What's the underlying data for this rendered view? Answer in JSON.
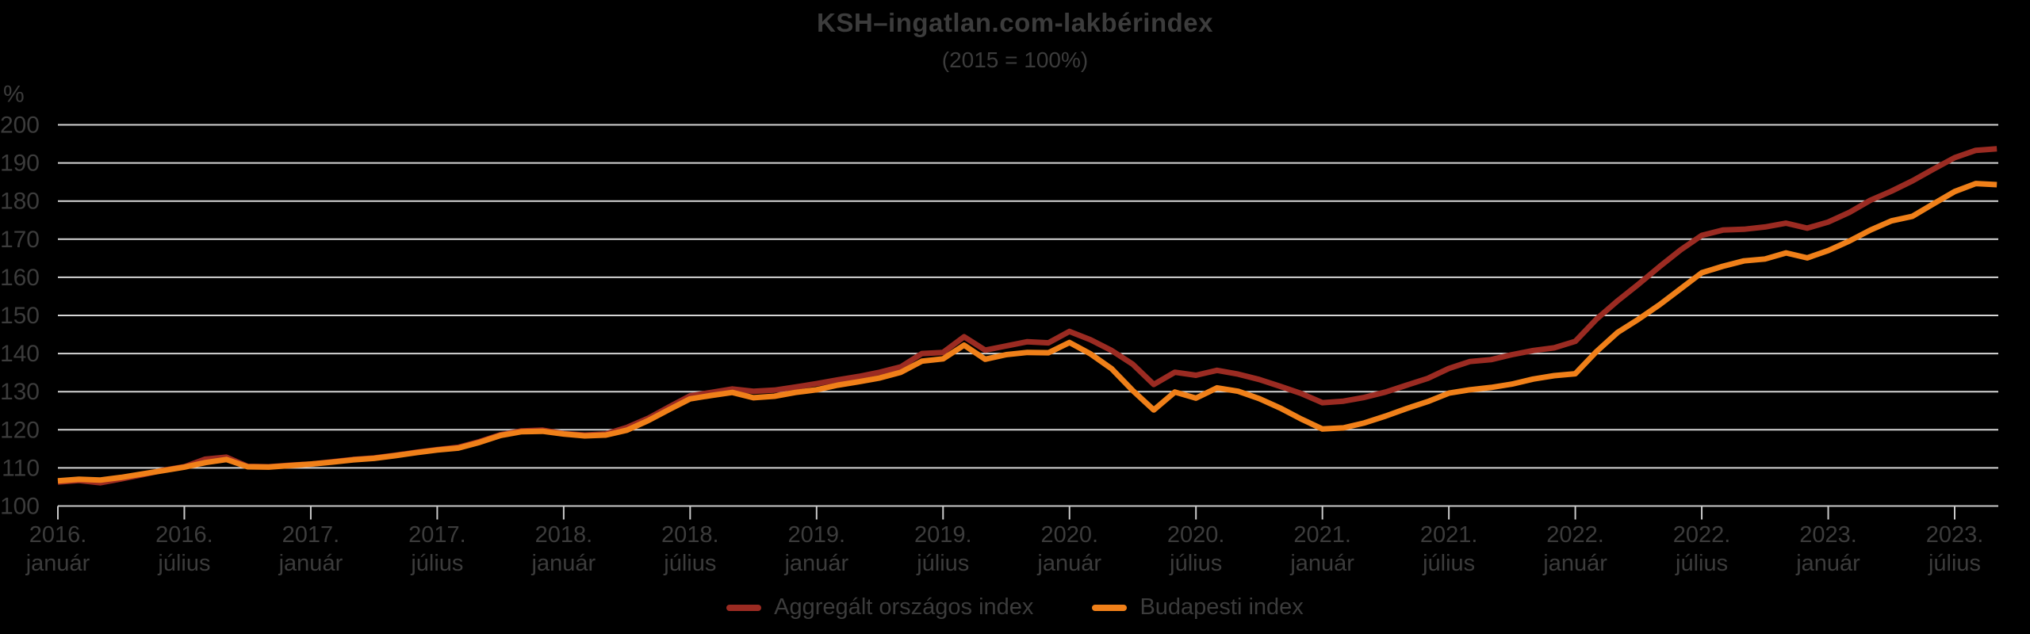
{
  "header": {
    "title": "KSH–ingatlan.com-lakbérindex",
    "subtitle": "(2015 = 100%)"
  },
  "style": {
    "background": "#000000",
    "text_color": "#3c3c3c",
    "grid_color": "#d6d6d6",
    "axis_color": "#c9c9c9"
  },
  "legend": {
    "items": [
      {
        "label": "Aggregált országos index",
        "color": "#9b2b22"
      },
      {
        "label": "Budapesti index",
        "color": "#f08019"
      }
    ]
  },
  "chart_data": {
    "type": "line",
    "title": "KSH–ingatlan.com-lakbérindex",
    "subtitle": "(2015 = 100%)",
    "ylabel": "%",
    "ylim": [
      100,
      200
    ],
    "ytick_values": [
      200,
      190,
      180,
      170,
      160,
      150,
      140,
      130,
      120,
      110,
      100
    ],
    "grid": true,
    "legend_position": "bottom-center",
    "x_start_month": "2016-01",
    "n_points": 93,
    "x_ticks": [
      {
        "line1": "2016.",
        "line2": "január"
      },
      {
        "line1": "2016.",
        "line2": "július"
      },
      {
        "line1": "2017.",
        "line2": "január"
      },
      {
        "line1": "2017.",
        "line2": "július"
      },
      {
        "line1": "2018.",
        "line2": "január"
      },
      {
        "line1": "2018.",
        "line2": "július"
      },
      {
        "line1": "2019.",
        "line2": "január"
      },
      {
        "line1": "2019.",
        "line2": "július"
      },
      {
        "line1": "2020.",
        "line2": "január"
      },
      {
        "line1": "2020.",
        "line2": "július"
      },
      {
        "line1": "2021.",
        "line2": "január"
      },
      {
        "line1": "2021.",
        "line2": "július"
      },
      {
        "line1": "2022.",
        "line2": "január"
      },
      {
        "line1": "2022.",
        "line2": "július"
      },
      {
        "line1": "2023.",
        "line2": "január"
      },
      {
        "line1": "2023.",
        "line2": "július"
      }
    ],
    "series": [
      {
        "name": "Aggregált országos index",
        "color": "#9b2b22",
        "values": [
          106.3,
          106.7,
          106.1,
          107.1,
          108.2,
          109.4,
          110.3,
          112.3,
          112.8,
          110.4,
          110.3,
          110.7,
          111.0,
          111.6,
          112.2,
          112.6,
          113.3,
          114.1,
          114.8,
          115.4,
          116.9,
          118.7,
          119.7,
          119.9,
          119.0,
          118.6,
          118.9,
          120.6,
          123.0,
          126.0,
          128.9,
          129.8,
          130.7,
          130.1,
          130.4,
          131.2,
          132.1,
          133.1,
          134.0,
          135.1,
          136.5,
          140.0,
          140.3,
          144.4,
          140.9,
          142.0,
          143.1,
          142.8,
          145.8,
          143.6,
          140.8,
          137.2,
          131.9,
          135.1,
          134.3,
          135.6,
          134.6,
          133.2,
          131.4,
          129.5,
          127.1,
          127.5,
          128.5,
          129.9,
          131.7,
          133.5,
          136.1,
          137.9,
          138.4,
          139.7,
          140.8,
          141.5,
          143.2,
          149.0,
          153.8,
          158.2,
          162.8,
          167.2,
          171.0,
          172.4,
          172.6,
          173.2,
          174.2,
          172.9,
          174.5,
          177.0,
          180.2,
          182.6,
          185.3,
          188.4,
          191.4,
          193.3,
          193.7
        ]
      },
      {
        "name": "Budapesti index",
        "color": "#f08019",
        "values": [
          106.6,
          107.0,
          106.8,
          107.5,
          108.4,
          109.3,
          110.2,
          111.4,
          112.2,
          110.3,
          110.2,
          110.6,
          111.0,
          111.5,
          112.1,
          112.5,
          113.2,
          114.0,
          114.7,
          115.2,
          116.7,
          118.5,
          119.5,
          119.6,
          118.9,
          118.4,
          118.6,
          119.9,
          122.4,
          125.3,
          128.1,
          129.0,
          129.8,
          128.4,
          128.8,
          129.8,
          130.5,
          131.7,
          132.6,
          133.6,
          135.1,
          138.0,
          138.6,
          142.2,
          138.5,
          139.7,
          140.3,
          140.2,
          142.9,
          139.9,
          136.0,
          130.3,
          125.2,
          129.9,
          128.3,
          131.0,
          130.1,
          128.2,
          125.7,
          122.8,
          120.2,
          120.5,
          121.8,
          123.6,
          125.6,
          127.4,
          129.6,
          130.5,
          131.1,
          132.0,
          133.3,
          134.2,
          134.7,
          140.5,
          145.5,
          149.0,
          152.8,
          157.0,
          161.2,
          162.9,
          164.3,
          164.8,
          166.4,
          165.1,
          167.0,
          169.5,
          172.4,
          174.8,
          176.0,
          179.3,
          182.5,
          184.6,
          184.3
        ]
      }
    ]
  }
}
